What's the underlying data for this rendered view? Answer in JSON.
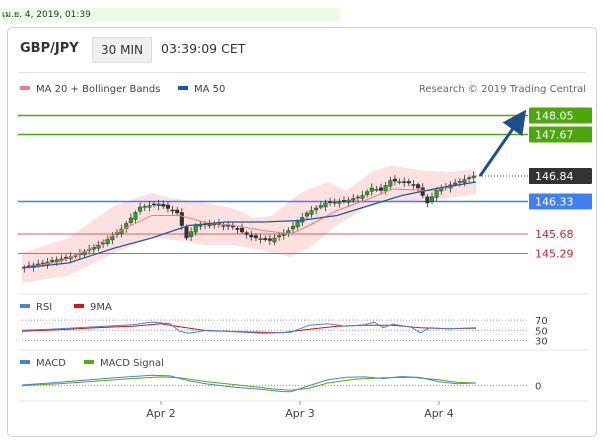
{
  "datebar": "เม.ย. 4, 2019, 01:39",
  "header": {
    "pair": "GBP/JPY",
    "timeframe": "30 MIN",
    "time": "03:39:09 CET"
  },
  "legend": {
    "bollinger": "MA 20 + Bollinger Bands",
    "ma50": "MA 50",
    "credit": "Research © 2019 Trading Central"
  },
  "colors": {
    "bollinger": "#f08080",
    "ma50": "#1e5a9a",
    "band_fill": "#fde0e0",
    "green_level": "#4ca60c",
    "blue_level": "#4080f0",
    "red_level": "#e06060",
    "current": "#333333",
    "arrow": "#1f4f8a",
    "rsi": "#4a7fe0",
    "ninema": "#e01010",
    "macd": "#4a7fe0",
    "macd_signal": "#5aaa10"
  },
  "chart_data": [
    {
      "type": "candlestick",
      "title": "GBP/JPY",
      "ylim": [
        144.9,
        148.4
      ],
      "x_labels": [
        "Apr 2",
        "Apr 3",
        "Apr 4"
      ],
      "x_label_bars": [
        30,
        60,
        90
      ],
      "bar_count": 98,
      "close_path": [
        [
          0,
          145.0
        ],
        [
          6,
          145.12
        ],
        [
          12,
          145.25
        ],
        [
          18,
          145.5
        ],
        [
          22,
          145.78
        ],
        [
          26,
          146.22
        ],
        [
          30,
          146.28
        ],
        [
          34,
          146.1
        ],
        [
          36,
          145.6
        ],
        [
          38,
          145.85
        ],
        [
          42,
          145.88
        ],
        [
          46,
          145.82
        ],
        [
          50,
          145.62
        ],
        [
          54,
          145.55
        ],
        [
          58,
          145.75
        ],
        [
          62,
          146.1
        ],
        [
          66,
          146.3
        ],
        [
          70,
          146.33
        ],
        [
          74,
          146.45
        ],
        [
          76,
          146.6
        ],
        [
          78,
          146.55
        ],
        [
          80,
          146.75
        ],
        [
          84,
          146.7
        ],
        [
          86,
          146.6
        ],
        [
          88,
          146.3
        ],
        [
          90,
          146.55
        ],
        [
          94,
          146.7
        ],
        [
          98,
          146.84
        ]
      ],
      "ma20_path": [
        [
          0,
          145.0
        ],
        [
          8,
          145.12
        ],
        [
          14,
          145.35
        ],
        [
          22,
          145.78
        ],
        [
          28,
          146.05
        ],
        [
          34,
          146.05
        ],
        [
          40,
          145.9
        ],
        [
          46,
          145.85
        ],
        [
          52,
          145.75
        ],
        [
          58,
          145.68
        ],
        [
          62,
          145.85
        ],
        [
          68,
          146.15
        ],
        [
          74,
          146.35
        ],
        [
          80,
          146.58
        ],
        [
          88,
          146.55
        ],
        [
          98,
          146.72
        ]
      ],
      "ma50_path": [
        [
          0,
          145.0
        ],
        [
          10,
          145.1
        ],
        [
          20,
          145.4
        ],
        [
          28,
          145.6
        ],
        [
          36,
          145.85
        ],
        [
          44,
          145.92
        ],
        [
          52,
          145.92
        ],
        [
          60,
          145.95
        ],
        [
          68,
          146.05
        ],
        [
          76,
          146.28
        ],
        [
          82,
          146.45
        ],
        [
          90,
          146.6
        ],
        [
          98,
          146.72
        ]
      ],
      "band_upper": [
        [
          0,
          145.3
        ],
        [
          10,
          145.6
        ],
        [
          20,
          146.25
        ],
        [
          28,
          146.5
        ],
        [
          32,
          146.4
        ],
        [
          40,
          146.3
        ],
        [
          46,
          146.18
        ],
        [
          50,
          146.0
        ],
        [
          54,
          146.05
        ],
        [
          60,
          146.5
        ],
        [
          66,
          146.72
        ],
        [
          70,
          146.55
        ],
        [
          76,
          146.95
        ],
        [
          80,
          147.05
        ],
        [
          86,
          146.95
        ],
        [
          92,
          146.92
        ],
        [
          98,
          146.98
        ]
      ],
      "band_lower": [
        [
          0,
          144.7
        ],
        [
          10,
          144.85
        ],
        [
          20,
          145.3
        ],
        [
          28,
          145.6
        ],
        [
          34,
          145.55
        ],
        [
          40,
          145.45
        ],
        [
          46,
          145.45
        ],
        [
          52,
          145.35
        ],
        [
          58,
          145.22
        ],
        [
          62,
          145.4
        ],
        [
          68,
          145.85
        ],
        [
          74,
          146.2
        ],
        [
          80,
          146.35
        ],
        [
          86,
          146.3
        ],
        [
          92,
          146.4
        ],
        [
          98,
          146.48
        ]
      ],
      "levels": [
        {
          "label": "148.05",
          "value": 148.05,
          "kind": "resistance"
        },
        {
          "label": "147.67",
          "value": 147.67,
          "kind": "resistance"
        },
        {
          "label": "146.84",
          "value": 146.84,
          "kind": "current"
        },
        {
          "label": "146.33",
          "value": 146.33,
          "kind": "pivot"
        },
        {
          "label": "145.68",
          "value": 145.68,
          "kind": "support"
        },
        {
          "label": "145.29",
          "value": 145.29,
          "kind": "support"
        }
      ]
    },
    {
      "type": "line",
      "title": "RSI",
      "ylim": [
        25,
        80
      ],
      "ticks": [
        "70",
        "50",
        "30"
      ],
      "tick_values": [
        70,
        50,
        30
      ],
      "series": [
        {
          "name": "RSI",
          "points": [
            [
              0,
              50
            ],
            [
              6,
              52
            ],
            [
              12,
              55
            ],
            [
              18,
              58
            ],
            [
              24,
              61
            ],
            [
              28,
              66
            ],
            [
              32,
              63
            ],
            [
              34,
              48
            ],
            [
              36,
              44
            ],
            [
              40,
              50
            ],
            [
              46,
              47
            ],
            [
              52,
              44
            ],
            [
              58,
              46
            ],
            [
              62,
              60
            ],
            [
              66,
              63
            ],
            [
              70,
              58
            ],
            [
              74,
              61
            ],
            [
              76,
              66
            ],
            [
              78,
              55
            ],
            [
              80,
              62
            ],
            [
              84,
              56
            ],
            [
              86,
              45
            ],
            [
              88,
              55
            ],
            [
              92,
              53
            ],
            [
              98,
              55
            ]
          ]
        },
        {
          "name": "9MA",
          "points": [
            [
              0,
              48
            ],
            [
              8,
              51
            ],
            [
              16,
              55
            ],
            [
              24,
              58
            ],
            [
              30,
              63
            ],
            [
              34,
              57
            ],
            [
              40,
              49
            ],
            [
              48,
              47
            ],
            [
              56,
              45
            ],
            [
              62,
              52
            ],
            [
              68,
              58
            ],
            [
              74,
              60
            ],
            [
              80,
              60
            ],
            [
              86,
              55
            ],
            [
              92,
              53
            ],
            [
              98,
              54
            ]
          ]
        }
      ]
    },
    {
      "type": "line",
      "title": "MACD",
      "ylim": [
        -0.35,
        0.45
      ],
      "ticks": [
        "0"
      ],
      "tick_values": [
        0
      ],
      "series": [
        {
          "name": "MACD",
          "points": [
            [
              0,
              0.02
            ],
            [
              6,
              0.08
            ],
            [
              12,
              0.15
            ],
            [
              18,
              0.22
            ],
            [
              24,
              0.28
            ],
            [
              28,
              0.32
            ],
            [
              32,
              0.3
            ],
            [
              36,
              0.15
            ],
            [
              40,
              0.05
            ],
            [
              46,
              -0.05
            ],
            [
              52,
              -0.12
            ],
            [
              56,
              -0.18
            ],
            [
              58,
              -0.19
            ],
            [
              62,
              0.0
            ],
            [
              66,
              0.18
            ],
            [
              70,
              0.26
            ],
            [
              74,
              0.27
            ],
            [
              78,
              0.22
            ],
            [
              82,
              0.28
            ],
            [
              86,
              0.25
            ],
            [
              90,
              0.12
            ],
            [
              94,
              0.06
            ],
            [
              98,
              0.08
            ]
          ]
        },
        {
          "name": "MACD Signal",
          "points": [
            [
              0,
              0.0
            ],
            [
              8,
              0.06
            ],
            [
              16,
              0.14
            ],
            [
              24,
              0.22
            ],
            [
              30,
              0.27
            ],
            [
              34,
              0.24
            ],
            [
              40,
              0.12
            ],
            [
              48,
              0.0
            ],
            [
              54,
              -0.1
            ],
            [
              58,
              -0.14
            ],
            [
              62,
              -0.08
            ],
            [
              66,
              0.08
            ],
            [
              72,
              0.2
            ],
            [
              78,
              0.24
            ],
            [
              84,
              0.26
            ],
            [
              90,
              0.18
            ],
            [
              94,
              0.1
            ],
            [
              98,
              0.08
            ]
          ]
        }
      ]
    }
  ]
}
